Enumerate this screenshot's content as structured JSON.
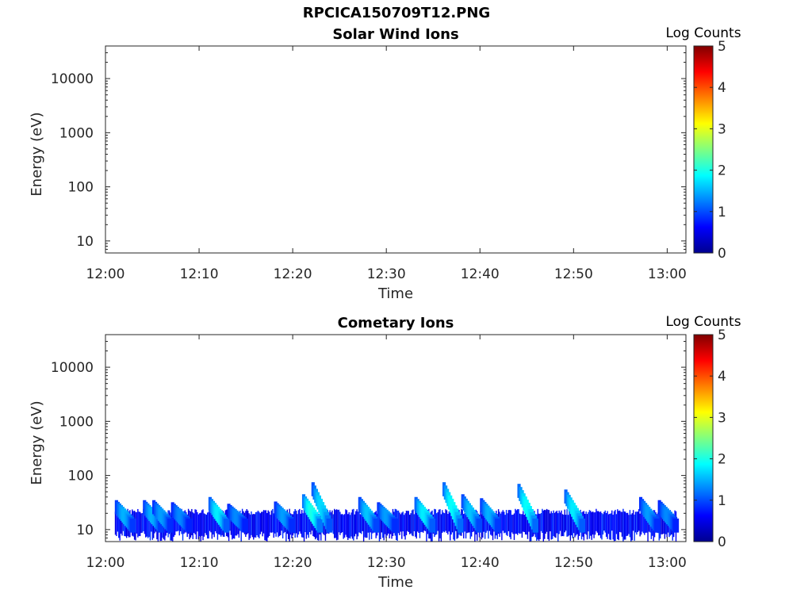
{
  "title": "RPCICA150709T12.PNG",
  "colors": {
    "axis": "#262626",
    "colormap": [
      "#00008f",
      "#0000ff",
      "#0080ff",
      "#00ffff",
      "#80ff80",
      "#ffff00",
      "#ff8000",
      "#ff0000",
      "#800000"
    ]
  },
  "chart_data": [
    {
      "type": "heatmap",
      "title": "Solar Wind Ions",
      "xlabel": "Time",
      "ylabel": "Energy (eV)",
      "x_ticks": [
        "12:00",
        "12:10",
        "12:20",
        "12:30",
        "12:40",
        "12:50",
        "13:00"
      ],
      "xlim": [
        "12:00",
        "13:02"
      ],
      "y_scale": "log",
      "y_ticks": [
        "10",
        "100",
        "1000",
        "10000"
      ],
      "ylim": [
        6,
        40000
      ],
      "colorbar": {
        "label": "Log Counts",
        "ticks": [
          "0",
          "1",
          "2",
          "3",
          "4",
          "5"
        ],
        "range": [
          0,
          5
        ]
      },
      "blobs": []
    },
    {
      "type": "heatmap",
      "title": "Cometary Ions",
      "xlabel": "Time",
      "ylabel": "Energy (eV)",
      "x_ticks": [
        "12:00",
        "12:10",
        "12:20",
        "12:30",
        "12:40",
        "12:50",
        "13:00"
      ],
      "xlim": [
        "12:00",
        "13:02"
      ],
      "y_scale": "log",
      "y_ticks": [
        "10",
        "100",
        "1000",
        "10000"
      ],
      "ylim": [
        6,
        40000
      ],
      "colorbar": {
        "label": "Log Counts",
        "ticks": [
          "0",
          "1",
          "2",
          "3",
          "4",
          "5"
        ],
        "range": [
          0,
          5
        ]
      },
      "background": {
        "time_start": "12:01",
        "time_end": "13:01",
        "energy_min": 6,
        "energy_max": 22,
        "log_counts": 0.4
      },
      "blobs": [
        {
          "time": "12:01",
          "peak_energy": 35,
          "log_counts": 1.5
        },
        {
          "time": "12:04",
          "peak_energy": 35,
          "log_counts": 1.5
        },
        {
          "time": "12:05",
          "peak_energy": 35,
          "log_counts": 1.4
        },
        {
          "time": "12:07",
          "peak_energy": 32,
          "log_counts": 1.3
        },
        {
          "time": "12:11",
          "peak_energy": 40,
          "log_counts": 1.8
        },
        {
          "time": "12:13",
          "peak_energy": 30,
          "log_counts": 1.3
        },
        {
          "time": "12:18",
          "peak_energy": 33,
          "log_counts": 1.4
        },
        {
          "time": "12:21",
          "peak_energy": 45,
          "log_counts": 2.0
        },
        {
          "time": "12:22",
          "peak_energy": 75,
          "log_counts": 1.7
        },
        {
          "time": "12:27",
          "peak_energy": 40,
          "log_counts": 1.6
        },
        {
          "time": "12:29",
          "peak_energy": 32,
          "log_counts": 1.4
        },
        {
          "time": "12:33",
          "peak_energy": 40,
          "log_counts": 1.8
        },
        {
          "time": "12:36",
          "peak_energy": 75,
          "log_counts": 1.9
        },
        {
          "time": "12:38",
          "peak_energy": 45,
          "log_counts": 1.6
        },
        {
          "time": "12:40",
          "peak_energy": 38,
          "log_counts": 1.5
        },
        {
          "time": "12:44",
          "peak_energy": 70,
          "log_counts": 1.9
        },
        {
          "time": "12:49",
          "peak_energy": 55,
          "log_counts": 1.8
        },
        {
          "time": "12:57",
          "peak_energy": 40,
          "log_counts": 1.4
        },
        {
          "time": "12:59",
          "peak_energy": 35,
          "log_counts": 1.3
        }
      ]
    }
  ]
}
